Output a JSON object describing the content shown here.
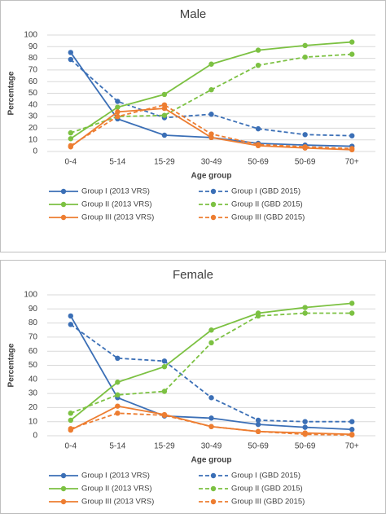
{
  "chart_data": [
    {
      "type": "line",
      "title": "Male",
      "x_label": "Age group",
      "y_label": "Percentage",
      "categories": [
        "0-4",
        "5-14",
        "15-29",
        "30-49",
        "50-69",
        "50-69",
        "70+"
      ],
      "ylim": [
        0,
        100
      ],
      "yticks": [
        0,
        10,
        20,
        30,
        40,
        50,
        60,
        70,
        80,
        90,
        100
      ],
      "grid": true,
      "series": [
        {
          "name": "Group I (2013 VRS)",
          "color": "#3b6fb6",
          "line_style": "solid",
          "values": [
            85,
            28,
            14,
            12,
            7,
            5.5,
            4.5
          ]
        },
        {
          "name": "Group I (GBD 2015)",
          "color": "#3b6fb6",
          "line_style": "dashed",
          "values": [
            79,
            43,
            29,
            32,
            19.5,
            14.5,
            13.5
          ]
        },
        {
          "name": "Group II (2013 VRS)",
          "color": "#7cc142",
          "line_style": "solid",
          "values": [
            11,
            38,
            49,
            75,
            87,
            91,
            94
          ]
        },
        {
          "name": "Group II (GBD 2015)",
          "color": "#7cc142",
          "line_style": "dashed",
          "values": [
            16,
            30,
            31,
            53,
            74,
            81,
            83.5
          ]
        },
        {
          "name": "Group III (2013 VRS)",
          "color": "#ed7d31",
          "line_style": "solid",
          "values": [
            4,
            34,
            37,
            12,
            5,
            3,
            1.5
          ]
        },
        {
          "name": "Group III (GBD 2015)",
          "color": "#ed7d31",
          "line_style": "dashed",
          "values": [
            5,
            30,
            40,
            15,
            6,
            4,
            2.5
          ]
        }
      ]
    },
    {
      "type": "line",
      "title": "Female",
      "x_label": "Age group",
      "y_label": "Percentage",
      "categories": [
        "0-4",
        "5-14",
        "15-29",
        "30-49",
        "50-69",
        "50-69",
        "70+"
      ],
      "ylim": [
        0,
        100
      ],
      "yticks": [
        0,
        10,
        20,
        30,
        40,
        50,
        60,
        70,
        80,
        90,
        100
      ],
      "grid": true,
      "series": [
        {
          "name": "Group I (2013 VRS)",
          "color": "#3b6fb6",
          "line_style": "solid",
          "values": [
            85,
            27,
            14,
            12.5,
            8,
            6,
            4.5
          ]
        },
        {
          "name": "Group I (GBD 2015)",
          "color": "#3b6fb6",
          "line_style": "dashed",
          "values": [
            79,
            55,
            53,
            27,
            11,
            10,
            10
          ]
        },
        {
          "name": "Group II (2013 VRS)",
          "color": "#7cc142",
          "line_style": "solid",
          "values": [
            11,
            38,
            49,
            75,
            87,
            91,
            94
          ]
        },
        {
          "name": "Group II (GBD 2015)",
          "color": "#7cc142",
          "line_style": "dashed",
          "values": [
            16,
            29,
            31.5,
            66,
            85,
            87,
            87
          ]
        },
        {
          "name": "Group III (2013 VRS)",
          "color": "#ed7d31",
          "line_style": "solid",
          "values": [
            4,
            21,
            15,
            6.5,
            3,
            2,
            1
          ]
        },
        {
          "name": "Group III (GBD 2015)",
          "color": "#ed7d31",
          "line_style": "dashed",
          "values": [
            5,
            16,
            14.5,
            6.5,
            3,
            1,
            0.5
          ]
        }
      ]
    }
  ]
}
